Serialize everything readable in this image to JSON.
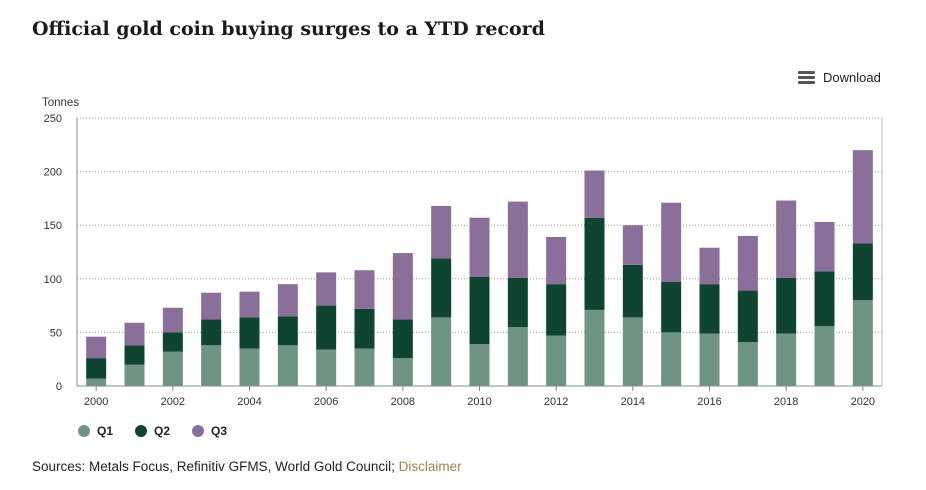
{
  "header": {
    "title": "Official gold coin buying surges to a YTD record",
    "download_label": "Download"
  },
  "footer": {
    "source_text": "Sources: Metals Focus, Refinitiv GFMS, World Gold Council; ",
    "disclaimer_label": "Disclaimer"
  },
  "chart_data": {
    "type": "bar",
    "stacked": true,
    "title": "Official gold coin buying surges to a YTD record",
    "ylabel": "Tonnes",
    "xlabel": "",
    "ylim": [
      0,
      250
    ],
    "yticks": [
      0,
      50,
      100,
      150,
      200,
      250
    ],
    "grid": true,
    "legend_position": "bottom-left",
    "categories": [
      "2000",
      "2001",
      "2002",
      "2003",
      "2004",
      "2005",
      "2006",
      "2007",
      "2008",
      "2009",
      "2010",
      "2011",
      "2012",
      "2013",
      "2014",
      "2015",
      "2016",
      "2017",
      "2018",
      "2019",
      "2020"
    ],
    "xtick_labels": [
      "2000",
      "2002",
      "2004",
      "2006",
      "2008",
      "2010",
      "2012",
      "2014",
      "2016",
      "2018",
      "2020"
    ],
    "series": [
      {
        "name": "Q1",
        "color": "#6f9484",
        "values": [
          7,
          20,
          32,
          38,
          35,
          38,
          34,
          35,
          26,
          64,
          39,
          55,
          47,
          71,
          64,
          50,
          49,
          41,
          49,
          56,
          80
        ]
      },
      {
        "name": "Q2",
        "color": "#0f4431",
        "values": [
          19,
          18,
          18,
          24,
          29,
          27,
          41,
          37,
          36,
          55,
          63,
          46,
          48,
          86,
          49,
          47,
          46,
          48,
          52,
          51,
          53
        ]
      },
      {
        "name": "Q3",
        "color": "#8a6f9a",
        "values": [
          20,
          21,
          23,
          25,
          24,
          30,
          31,
          36,
          62,
          49,
          55,
          71,
          44,
          44,
          37,
          74,
          34,
          51,
          72,
          46,
          87
        ]
      }
    ]
  }
}
